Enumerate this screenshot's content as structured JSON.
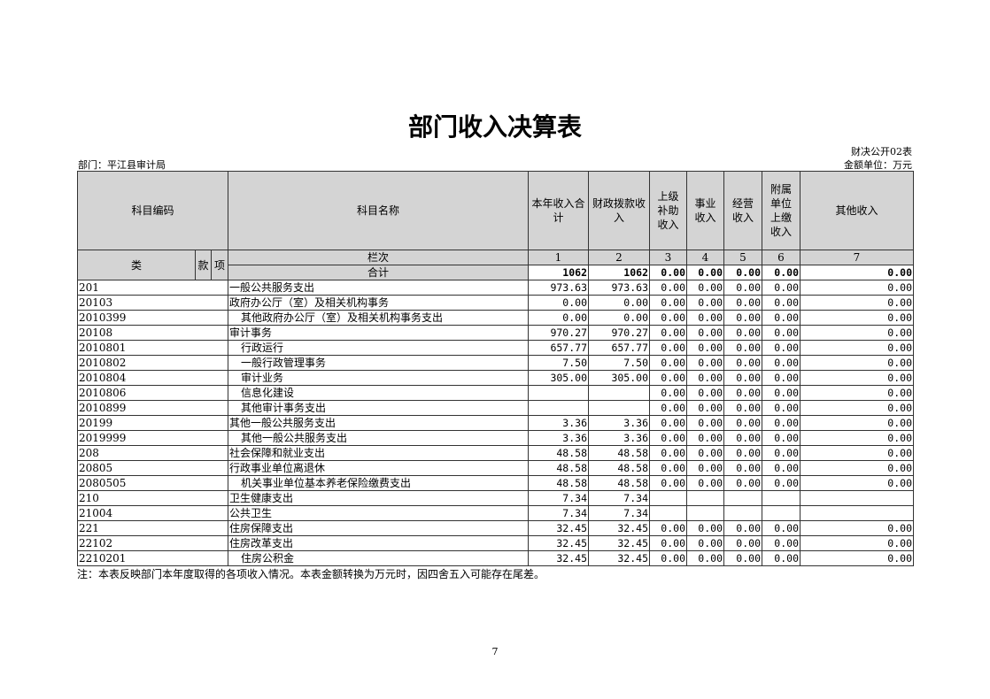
{
  "title": "部门收入决算表",
  "form_no": "财决公开02表",
  "department": "部门：平江县审计局",
  "unit": "金额单位：万元",
  "headers": {
    "code": "科目编码",
    "name": "科目名称",
    "c1": "本年收入合计",
    "c2": "财政拨款收入",
    "c3": "上级补助收入",
    "c4": "事业收入",
    "c5": "经营收入",
    "c6": "附属单位上缴收入",
    "c7": "其他收入",
    "lei": "类",
    "kuan": "款",
    "xiang": "项",
    "lanci": "栏次",
    "nums": [
      "1",
      "2",
      "3",
      "4",
      "5",
      "6",
      "7"
    ],
    "total": "合计"
  },
  "total_row": [
    "1062",
    "1062",
    "0.00",
    "0.00",
    "0.00",
    "0.00",
    "0.00"
  ],
  "rows": [
    {
      "code": "201",
      "name": "一般公共服务支出",
      "indent": false,
      "v": [
        "973.63",
        "973.63",
        "0.00",
        "0.00",
        "0.00",
        "0.00",
        "0.00"
      ]
    },
    {
      "code": "20103",
      "name": "政府办公厅（室）及相关机构事务",
      "indent": false,
      "v": [
        "0.00",
        "0.00",
        "0.00",
        "0.00",
        "0.00",
        "0.00",
        "0.00"
      ]
    },
    {
      "code": "2010399",
      "name": "其他政府办公厅（室）及相关机构事务支出",
      "indent": true,
      "v": [
        "0.00",
        "0.00",
        "0.00",
        "0.00",
        "0.00",
        "0.00",
        "0.00"
      ]
    },
    {
      "code": "20108",
      "name": "审计事务",
      "indent": false,
      "v": [
        "970.27",
        "970.27",
        "0.00",
        "0.00",
        "0.00",
        "0.00",
        "0.00"
      ]
    },
    {
      "code": "2010801",
      "name": "行政运行",
      "indent": true,
      "v": [
        "657.77",
        "657.77",
        "0.00",
        "0.00",
        "0.00",
        "0.00",
        "0.00"
      ]
    },
    {
      "code": "2010802",
      "name": "一般行政管理事务",
      "indent": true,
      "v": [
        "7.50",
        "7.50",
        "0.00",
        "0.00",
        "0.00",
        "0.00",
        "0.00"
      ]
    },
    {
      "code": "2010804",
      "name": "审计业务",
      "indent": true,
      "v": [
        "305.00",
        "305.00",
        "0.00",
        "0.00",
        "0.00",
        "0.00",
        "0.00"
      ]
    },
    {
      "code": "2010806",
      "name": "信息化建设",
      "indent": true,
      "v": [
        "",
        "",
        "0.00",
        "0.00",
        "0.00",
        "0.00",
        "0.00"
      ]
    },
    {
      "code": "2010899",
      "name": "其他审计事务支出",
      "indent": true,
      "v": [
        "",
        "",
        "0.00",
        "0.00",
        "0.00",
        "0.00",
        "0.00"
      ]
    },
    {
      "code": "20199",
      "name": "其他一般公共服务支出",
      "indent": false,
      "v": [
        "3.36",
        "3.36",
        "0.00",
        "0.00",
        "0.00",
        "0.00",
        "0.00"
      ]
    },
    {
      "code": "2019999",
      "name": "其他一般公共服务支出",
      "indent": true,
      "v": [
        "3.36",
        "3.36",
        "0.00",
        "0.00",
        "0.00",
        "0.00",
        "0.00"
      ]
    },
    {
      "code": "208",
      "name": "社会保障和就业支出",
      "indent": false,
      "v": [
        "48.58",
        "48.58",
        "0.00",
        "0.00",
        "0.00",
        "0.00",
        "0.00"
      ]
    },
    {
      "code": "20805",
      "name": "行政事业单位离退休",
      "indent": false,
      "v": [
        "48.58",
        "48.58",
        "0.00",
        "0.00",
        "0.00",
        "0.00",
        "0.00"
      ]
    },
    {
      "code": "2080505",
      "name": "机关事业单位基本养老保险缴费支出",
      "indent": true,
      "v": [
        "48.58",
        "48.58",
        "0.00",
        "0.00",
        "0.00",
        "0.00",
        "0.00"
      ]
    },
    {
      "code": "210",
      "name": "卫生健康支出",
      "indent": false,
      "v": [
        "7.34",
        "7.34",
        "",
        "",
        "",
        "",
        ""
      ]
    },
    {
      "code": "21004",
      "name": "公共卫生",
      "indent": false,
      "v": [
        "7.34",
        "7.34",
        "",
        "",
        "",
        "",
        ""
      ]
    },
    {
      "code": "221",
      "name": "住房保障支出",
      "indent": false,
      "v": [
        "32.45",
        "32.45",
        "0.00",
        "0.00",
        "0.00",
        "0.00",
        "0.00"
      ]
    },
    {
      "code": "22102",
      "name": "住房改革支出",
      "indent": false,
      "v": [
        "32.45",
        "32.45",
        "0.00",
        "0.00",
        "0.00",
        "0.00",
        "0.00"
      ]
    },
    {
      "code": "2210201",
      "name": "住房公积金",
      "indent": true,
      "v": [
        "32.45",
        "32.45",
        "0.00",
        "0.00",
        "0.00",
        "0.00",
        "0.00"
      ]
    }
  ],
  "note": "注：本表反映部门本年度取得的各项收入情况。本表金额转换为万元时，因四舍五入可能存在尾差。",
  "page_number": "7"
}
